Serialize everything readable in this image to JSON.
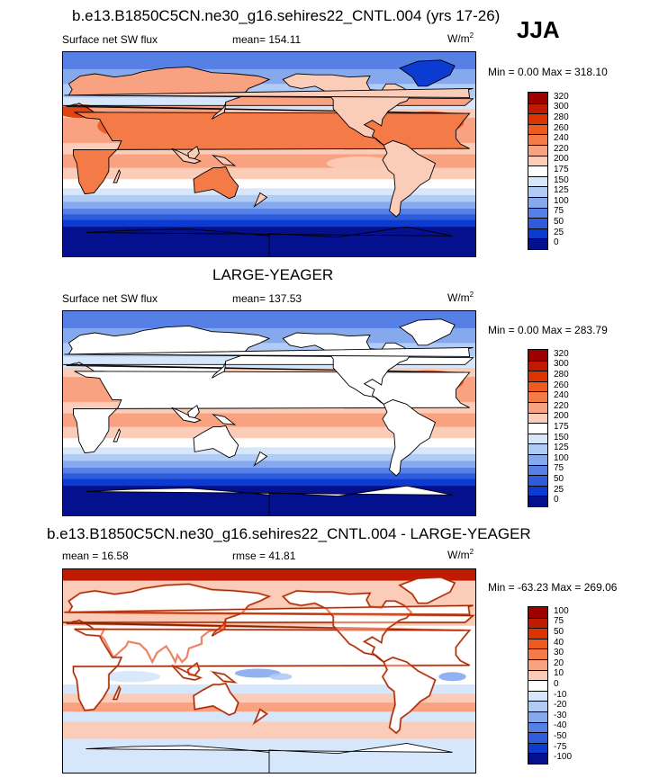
{
  "season": "JJA",
  "panels": [
    {
      "title": "b.e13.B1850C5CN.ne30_g16.sehires22_CNTL.004 (yrs 17-26)",
      "left_label": "Surface net SW flux",
      "center_label": "mean= 154.11",
      "units": "W/m",
      "units_sup": "2",
      "minmax": "Min =   0.00 Max = 318.10",
      "levels": [
        "320",
        "300",
        "280",
        "260",
        "240",
        "220",
        "200",
        "175",
        "150",
        "125",
        "100",
        "75",
        "50",
        "25",
        "0"
      ],
      "colors": [
        "#9e0000",
        "#c01a00",
        "#dd3300",
        "#ee5a20",
        "#f47a48",
        "#f8a282",
        "#fbcdb8",
        "#ffffff",
        "#d6e6fb",
        "#b0cbf5",
        "#86a9ee",
        "#5680e6",
        "#2e5cdc",
        "#0b3bd0",
        "#04108e"
      ],
      "missing_land": false
    },
    {
      "title": "LARGE-YEAGER",
      "left_label": "Surface net SW flux",
      "center_label": "mean= 137.53",
      "units": "W/m",
      "units_sup": "2",
      "minmax": "Min =   0.00 Max = 283.79",
      "levels": [
        "320",
        "300",
        "280",
        "260",
        "240",
        "220",
        "200",
        "175",
        "150",
        "125",
        "100",
        "75",
        "50",
        "25",
        "0"
      ],
      "colors": [
        "#9e0000",
        "#c01a00",
        "#dd3300",
        "#ee5a20",
        "#f47a48",
        "#f8a282",
        "#fbcdb8",
        "#ffffff",
        "#d6e6fb",
        "#b0cbf5",
        "#86a9ee",
        "#5680e6",
        "#2e5cdc",
        "#0b3bd0",
        "#04108e"
      ],
      "missing_land": true
    },
    {
      "title": "b.e13.B1850C5CN.ne30_g16.sehires22_CNTL.004 - LARGE-YEAGER",
      "left_label": "mean =  16.58",
      "center_label": "rmse =  41.81",
      "units": "W/m",
      "units_sup": "2",
      "minmax": "Min = -63.23 Max = 269.06",
      "levels": [
        "100",
        "75",
        "50",
        "40",
        "30",
        "20",
        "10",
        "0",
        "-10",
        "-20",
        "-30",
        "-40",
        "-50",
        "-75",
        "-100"
      ],
      "colors": [
        "#9e0000",
        "#c01a00",
        "#dd3300",
        "#ee5a20",
        "#f47a48",
        "#f8a282",
        "#fbcdb8",
        "#ffffff",
        "#d6e6fb",
        "#b0cbf5",
        "#86a9ee",
        "#5680e6",
        "#2e5cdc",
        "#0b3bd0",
        "#04108e"
      ],
      "missing_land": true
    }
  ],
  "chart_data": [
    {
      "type": "heatmap",
      "title": "b.e13.B1850C5CN.ne30_g16.sehires22_CNTL.004 (yrs 17-26)",
      "variable": "Surface net SW flux",
      "units": "W/m2",
      "mean": 154.11,
      "min": 0.0,
      "max": 318.1,
      "contour_levels": [
        0,
        25,
        50,
        75,
        100,
        125,
        150,
        175,
        200,
        220,
        240,
        260,
        280,
        300,
        320
      ]
    },
    {
      "type": "heatmap",
      "title": "LARGE-YEAGER",
      "variable": "Surface net SW flux",
      "units": "W/m2",
      "mean": 137.53,
      "min": 0.0,
      "max": 283.79,
      "contour_levels": [
        0,
        25,
        50,
        75,
        100,
        125,
        150,
        175,
        200,
        220,
        240,
        260,
        280,
        300,
        320
      ]
    },
    {
      "type": "heatmap",
      "title": "b.e13.B1850C5CN.ne30_g16.sehires22_CNTL.004 - LARGE-YEAGER",
      "units": "W/m2",
      "mean": 16.58,
      "rmse": 41.81,
      "min": -63.23,
      "max": 269.06,
      "contour_levels": [
        -100,
        -75,
        -50,
        -40,
        -30,
        -20,
        -10,
        0,
        10,
        20,
        30,
        40,
        50,
        75,
        100
      ]
    }
  ]
}
